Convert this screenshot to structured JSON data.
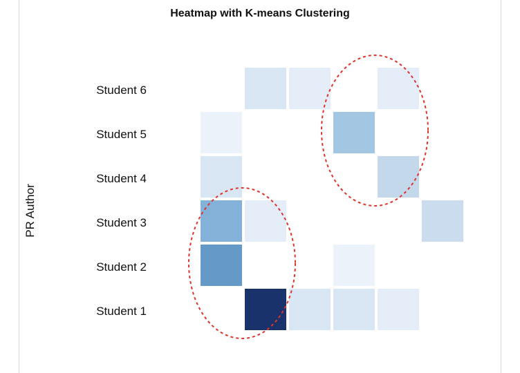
{
  "chart_data": {
    "type": "heatmap",
    "title": "Heatmap with K-means Clustering",
    "ylabel": "PR Author",
    "xlabel": "",
    "y_categories": [
      "Student 1",
      "Student 2",
      "Student 3",
      "Student 4",
      "Student 5",
      "Student 6"
    ],
    "x_column_count": 7,
    "grid": false,
    "legend": "none",
    "cells": [
      {
        "row": "Student 6",
        "col": 2,
        "value": 0.15
      },
      {
        "row": "Student 6",
        "col": 3,
        "value": 0.1
      },
      {
        "row": "Student 6",
        "col": 5,
        "value": 0.1
      },
      {
        "row": "Student 5",
        "col": 1,
        "value": 0.07
      },
      {
        "row": "Student 5",
        "col": 4,
        "value": 0.38
      },
      {
        "row": "Student 4",
        "col": 1,
        "value": 0.15
      },
      {
        "row": "Student 4",
        "col": 5,
        "value": 0.25
      },
      {
        "row": "Student 3",
        "col": 1,
        "value": 0.5
      },
      {
        "row": "Student 3",
        "col": 2,
        "value": 0.1
      },
      {
        "row": "Student 3",
        "col": 6,
        "value": 0.22
      },
      {
        "row": "Student 2",
        "col": 1,
        "value": 0.63
      },
      {
        "row": "Student 2",
        "col": 4,
        "value": 0.07
      },
      {
        "row": "Student 1",
        "col": 2,
        "value": 1.0
      },
      {
        "row": "Student 1",
        "col": 3,
        "value": 0.15
      },
      {
        "row": "Student 1",
        "col": 4,
        "value": 0.15
      },
      {
        "row": "Student 1",
        "col": 5,
        "value": 0.1
      }
    ],
    "clusters": [
      {
        "rows": [
          "Student 4",
          "Student 6"
        ],
        "cols": [
          4,
          5
        ],
        "style": "dashed-ellipse"
      },
      {
        "rows": [
          "Student 1",
          "Student 3"
        ],
        "cols": [
          1,
          2
        ],
        "style": "dashed-ellipse"
      }
    ],
    "colors": {
      "low": "#ffffff",
      "high": "#19326b",
      "cluster_outline": "#e0332c"
    }
  }
}
